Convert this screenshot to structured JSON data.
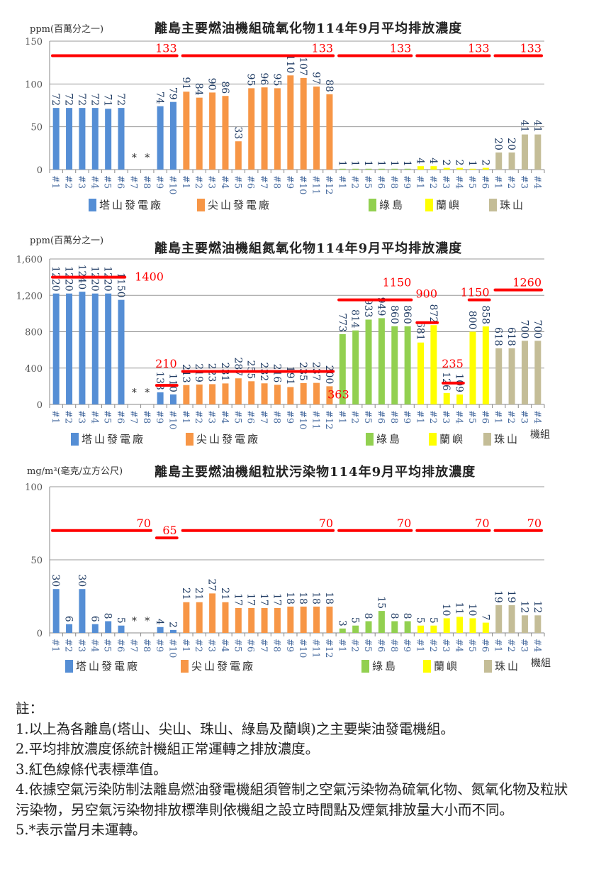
{
  "unit_axis_label": "機組",
  "chart_data": [
    {
      "type": "bar",
      "title": "離島主要燃油機組硫氧化物114年9月平均排放濃度",
      "ylabel": "ppm(百萬分之一)",
      "ylim": [
        0,
        150
      ],
      "yticks": [
        "0",
        "50",
        "100",
        "150"
      ],
      "ytick_values": [
        0,
        50,
        100,
        150
      ],
      "grid": true,
      "legend_position": "bottom",
      "groups": [
        {
          "name": "塔山發電廠",
          "color": "#558ed5",
          "units": [
            "#1",
            "#2",
            "#3",
            "#4",
            "#5",
            "#6",
            "#7",
            "#8",
            "#9",
            "#10"
          ],
          "values": [
            72,
            72,
            72,
            72,
            71,
            72,
            null,
            null,
            74,
            79
          ],
          "labels": [
            "72",
            "72",
            "72",
            "72",
            "71",
            "72",
            "*",
            "*",
            "74",
            "79"
          ]
        },
        {
          "name": "尖山發電廠",
          "color": "#f79646",
          "units": [
            "#1",
            "#2",
            "#3",
            "#4",
            "#5",
            "#6",
            "#7",
            "#8",
            "#9",
            "#10",
            "#11",
            "#12"
          ],
          "values": [
            91,
            84,
            90,
            86,
            33,
            95,
            96,
            95,
            110,
            107,
            97,
            88
          ],
          "labels": [
            "91",
            "84",
            "90",
            "86",
            "33",
            "95",
            "96",
            "95",
            "110",
            "107",
            "97",
            "88"
          ]
        },
        {
          "name": "綠島",
          "color": "#92d050",
          "units": [
            "#1",
            "#2",
            "#5",
            "#6",
            "#8",
            "#9"
          ],
          "values": [
            1,
            1,
            1,
            1,
            1,
            1
          ],
          "labels": [
            "1",
            "1",
            "1",
            "1",
            "1",
            "1"
          ]
        },
        {
          "name": "蘭嶼",
          "color": "#ffff00",
          "units": [
            "#1",
            "#2",
            "#3",
            "#4",
            "#5",
            "#6"
          ],
          "values": [
            4,
            4,
            2,
            2,
            1,
            2
          ],
          "labels": [
            "4",
            "4",
            "2",
            "2",
            "1",
            "2"
          ]
        },
        {
          "name": "珠山",
          "color": "#c4bd97",
          "units": [
            "#1",
            "#2",
            "#3",
            "#4"
          ],
          "values": [
            20,
            20,
            41,
            41
          ],
          "labels": [
            "20",
            "20",
            "41",
            "41"
          ]
        }
      ],
      "standards": [
        {
          "value": 133,
          "label": "133",
          "group": "塔山發電廠",
          "from": "#1",
          "to": "#10"
        },
        {
          "value": 133,
          "label": "133",
          "group": "尖山發電廠",
          "from": "#1",
          "to": "#12"
        },
        {
          "value": 133,
          "label": "133",
          "group": "綠島",
          "from": "#1",
          "to": "#9"
        },
        {
          "value": 133,
          "label": "133",
          "group": "蘭嶼",
          "from": "#1",
          "to": "#6"
        },
        {
          "value": 133,
          "label": "133",
          "group": "珠山",
          "from": "#1",
          "to": "#4"
        }
      ],
      "standard_color": "#ff0000"
    },
    {
      "type": "bar",
      "title": "離島主要燃油機組氮氧化物114年9月平均排放濃度",
      "ylabel": "ppm(百萬分之一)",
      "ylim": [
        0,
        1600
      ],
      "yticks": [
        "0",
        "400",
        "800",
        "1,200",
        "1,600"
      ],
      "ytick_values": [
        0,
        400,
        800,
        1200,
        1600
      ],
      "grid": true,
      "legend_position": "bottom",
      "groups": [
        {
          "name": "塔山發電廠",
          "color": "#558ed5",
          "units": [
            "#1",
            "#2",
            "#3",
            "#4",
            "#5",
            "#6",
            "#7",
            "#8",
            "#9",
            "#10"
          ],
          "values": [
            1220,
            1220,
            1240,
            1220,
            1220,
            1150,
            null,
            null,
            133,
            110
          ],
          "labels": [
            "1220",
            "1220",
            "1240",
            "1220",
            "1220",
            "1150",
            "*",
            "*",
            "133",
            "110"
          ]
        },
        {
          "name": "尖山發電廠",
          "color": "#f79646",
          "units": [
            "#1",
            "#2",
            "#3",
            "#4",
            "#5",
            "#6",
            "#7",
            "#8",
            "#9",
            "#10",
            "#11",
            "#12"
          ],
          "values": [
            213,
            219,
            223,
            231,
            287,
            255,
            232,
            216,
            191,
            235,
            237,
            200
          ],
          "labels": [
            "213",
            "219",
            "223",
            "231",
            "287",
            "255",
            "232",
            "216",
            "191",
            "235",
            "237",
            "200"
          ]
        },
        {
          "name": "綠島",
          "color": "#92d050",
          "units": [
            "#1",
            "#2",
            "#5",
            "#6",
            "#8",
            "#9"
          ],
          "values": [
            773,
            814,
            933,
            949,
            860,
            860
          ],
          "labels": [
            "773",
            "814",
            "933",
            "949",
            "860",
            "860"
          ]
        },
        {
          "name": "蘭嶼",
          "color": "#ffff00",
          "units": [
            "#1",
            "#2",
            "#3",
            "#4",
            "#5",
            "#6"
          ],
          "values": [
            681,
            872,
            126,
            109,
            800,
            858
          ],
          "labels": [
            "681",
            "872",
            "126",
            "109",
            "800",
            "858"
          ]
        },
        {
          "name": "珠山",
          "color": "#c4bd97",
          "units": [
            "#1",
            "#2",
            "#3",
            "#4"
          ],
          "values": [
            618,
            618,
            700,
            700
          ],
          "labels": [
            "618",
            "618",
            "700",
            "700"
          ]
        }
      ],
      "standards": [
        {
          "value": 1400,
          "label": "1400",
          "group": "塔山發電廠",
          "from": "#1",
          "to": "#6"
        },
        {
          "value": 210,
          "label": "210",
          "group": "塔山發電廠",
          "from": "#9",
          "to": "#10"
        },
        {
          "value": 363,
          "label": "363",
          "group": "尖山發電廠",
          "from": "#1",
          "to": "#12"
        },
        {
          "value": 1150,
          "label": "1150",
          "group": "綠島",
          "from": "#1",
          "to": "#9"
        },
        {
          "value": 900,
          "label": "900",
          "group": "蘭嶼",
          "from": "#1",
          "to": "#2"
        },
        {
          "value": 235,
          "label": "235",
          "group": "蘭嶼",
          "from": "#3",
          "to": "#4"
        },
        {
          "value": 1150,
          "label": "1150",
          "group": "蘭嶼",
          "from": "#5",
          "to": "#6"
        },
        {
          "value": 1260,
          "label": "1260",
          "group": "珠山",
          "from": "#1",
          "to": "#4"
        }
      ],
      "standard_color": "#ff0000"
    },
    {
      "type": "bar",
      "title": "離島主要燃油機組粒狀污染物114年9月平均排放濃度",
      "ylabel": "mg/m³(毫克/立方公尺)",
      "ylim": [
        0,
        100
      ],
      "yticks": [
        "0",
        "50",
        "100"
      ],
      "ytick_values": [
        0,
        50,
        100
      ],
      "grid": true,
      "legend_position": "bottom",
      "groups": [
        {
          "name": "塔山發電廠",
          "color": "#558ed5",
          "units": [
            "#1",
            "#2",
            "#3",
            "#4",
            "#5",
            "#6",
            "#7",
            "#8",
            "#9",
            "#10"
          ],
          "values": [
            30,
            6,
            30,
            6,
            8,
            5,
            null,
            null,
            4,
            2
          ],
          "labels": [
            "30",
            "6",
            "30",
            "6",
            "8",
            "5",
            "*",
            "*",
            "4",
            "2"
          ]
        },
        {
          "name": "尖山發電廠",
          "color": "#f79646",
          "units": [
            "#1",
            "#2",
            "#3",
            "#4",
            "#5",
            "#6",
            "#7",
            "#8",
            "#9",
            "#10",
            "#11",
            "#12"
          ],
          "values": [
            21,
            21,
            27,
            21,
            17,
            17,
            17,
            17,
            18,
            18,
            18,
            18
          ],
          "labels": [
            "21",
            "21",
            "27",
            "21",
            "17",
            "17",
            "17",
            "17",
            "18",
            "18",
            "18",
            "18"
          ]
        },
        {
          "name": "綠島",
          "color": "#92d050",
          "units": [
            "#1",
            "#2",
            "#5",
            "#6",
            "#8",
            "#9"
          ],
          "values": [
            3,
            5,
            8,
            15,
            8,
            8
          ],
          "labels": [
            "3",
            "5",
            "8",
            "15",
            "8",
            "8"
          ]
        },
        {
          "name": "蘭嶼",
          "color": "#ffff00",
          "units": [
            "#1",
            "#2",
            "#3",
            "#4",
            "#5",
            "#6"
          ],
          "values": [
            5,
            5,
            10,
            11,
            10,
            7
          ],
          "labels": [
            "5",
            "5",
            "10",
            "11",
            "10",
            "7"
          ]
        },
        {
          "name": "珠山",
          "color": "#c4bd97",
          "units": [
            "#1",
            "#2",
            "#3",
            "#4"
          ],
          "values": [
            19,
            19,
            12,
            12
          ],
          "labels": [
            "19",
            "19",
            "12",
            "12"
          ]
        }
      ],
      "standards": [
        {
          "value": 70,
          "label": "70",
          "group": "塔山發電廠",
          "from": "#1",
          "to": "#8"
        },
        {
          "value": 65,
          "label": "65",
          "group": "塔山發電廠",
          "from": "#9",
          "to": "#10"
        },
        {
          "value": 70,
          "label": "70",
          "group": "尖山發電廠",
          "from": "#1",
          "to": "#12"
        },
        {
          "value": 70,
          "label": "70",
          "group": "綠島",
          "from": "#1",
          "to": "#9"
        },
        {
          "value": 70,
          "label": "70",
          "group": "蘭嶼",
          "from": "#1",
          "to": "#6"
        },
        {
          "value": 70,
          "label": "70",
          "group": "珠山",
          "from": "#1",
          "to": "#4"
        }
      ],
      "standard_color": "#ff0000"
    }
  ],
  "notes": {
    "heading": "註：",
    "items": [
      "1.以上為各離島(塔山、尖山、珠山、綠島及蘭嶼)之主要柴油發電機組。",
      "2.平均排放濃度係統計機組正常運轉之排放濃度。",
      "3.紅色線條代表標準值。",
      "4.依據空氣污染防制法離島燃油發電機組須管制之空氣污染物為硫氧化物、氮氧化物及粒狀污染物，另空氣污染物排放標準則依機組之設立時間點及煙氣排放量大小而不同。",
      "5.*表示當月未運轉。"
    ]
  }
}
